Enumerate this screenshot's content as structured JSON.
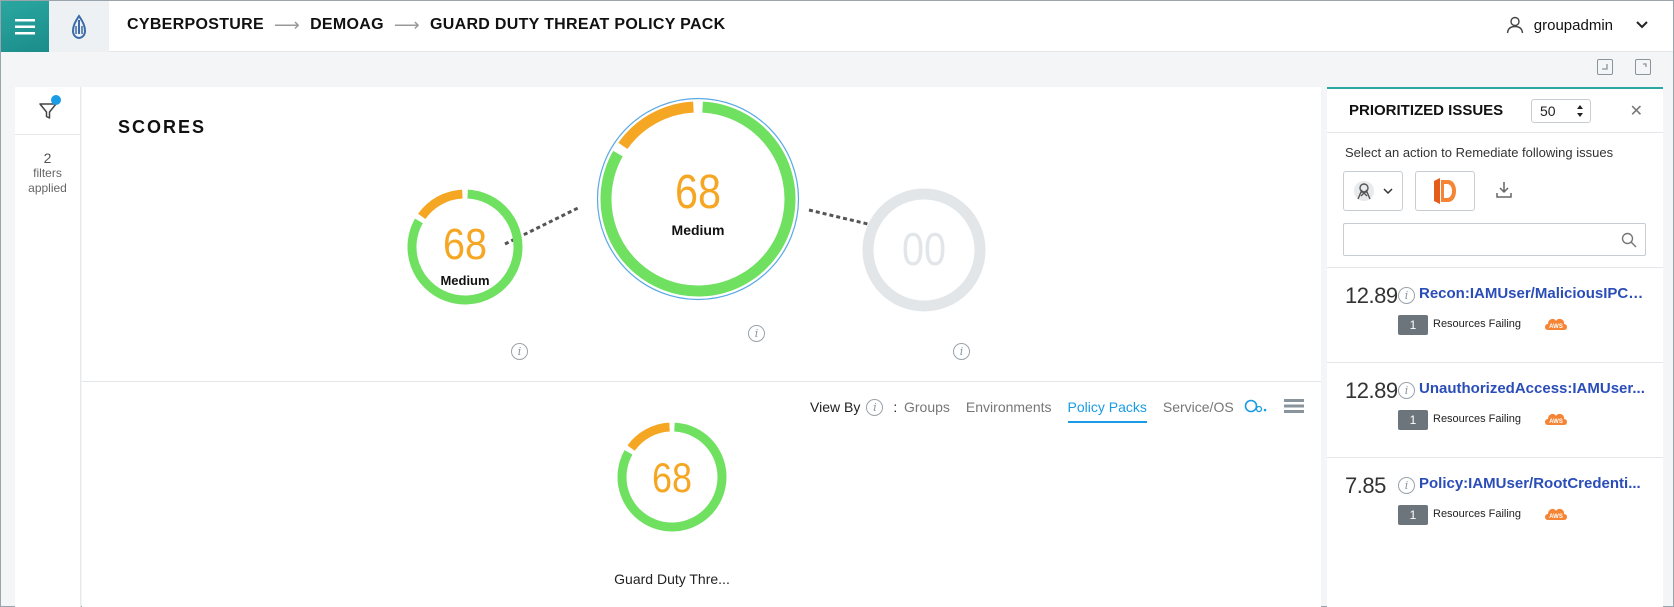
{
  "header": {
    "breadcrumb": [
      "CYBERPOSTURE",
      "DEMOAG",
      "GUARD DUTY THREAT POLICY PACK"
    ],
    "user": "groupadmin",
    "icons": [
      "menu-icon",
      "logo-icon",
      "user-icon",
      "chevron-down-icon"
    ]
  },
  "filters": {
    "count": "2",
    "line1": "filters",
    "line2": "applied"
  },
  "scores": {
    "title": "SCORES",
    "gauges": [
      {
        "value": "68",
        "label": "Medium",
        "fraction": 0.68
      },
      {
        "value": "68",
        "label": "Medium",
        "fraction": 0.68
      },
      {
        "value": "00",
        "label": "",
        "fraction": 0
      }
    ]
  },
  "view_by": {
    "label": "View By",
    "colon": ":",
    "tabs": [
      "Groups",
      "Environments",
      "Policy Packs",
      "Service/OS"
    ],
    "active_tab": "Policy Packs"
  },
  "policy_pack": {
    "value": "68",
    "name": "Guard Duty Thre...",
    "fraction": 0.68
  },
  "colors": {
    "green": "#6fe060",
    "orange": "#f5a623",
    "grey": "#e2e6e9",
    "accent": "#1a9be6",
    "link": "#2a4db8"
  },
  "issues_panel": {
    "title": "PRIORITIZED ISSUES",
    "count": "50",
    "subtitle": "Select an action to Remediate following issues",
    "search_placeholder": "",
    "issues": [
      {
        "score": "12.89",
        "name": "Recon:IAMUser/MaliciousIPCa...",
        "badge": "1",
        "status": "Resources Failing"
      },
      {
        "score": "12.89",
        "name": "UnauthorizedAccess:IAMUser...",
        "badge": "1",
        "status": "Resources Failing"
      },
      {
        "score": "7.85",
        "name": "Policy:IAMUser/RootCredenti...",
        "badge": "1",
        "status": "Resources Failing"
      }
    ],
    "aws_label": "AWS"
  }
}
